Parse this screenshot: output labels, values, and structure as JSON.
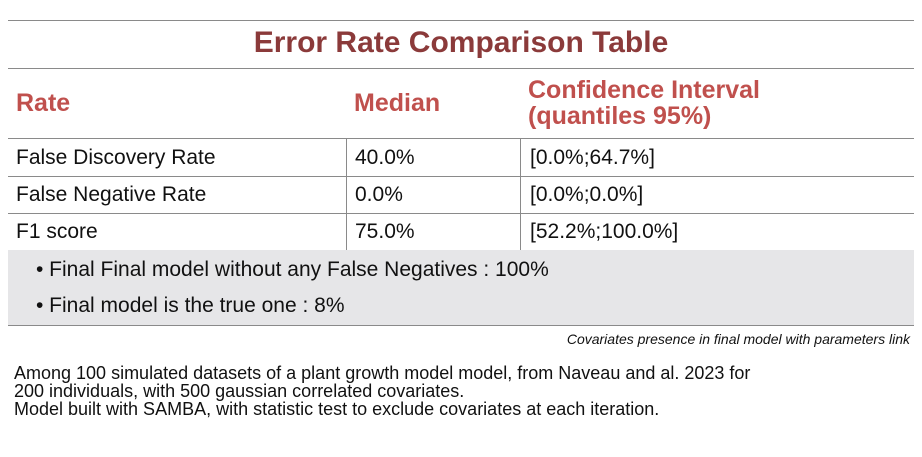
{
  "title": "Error Rate Comparison Table",
  "columns": [
    "Rate",
    "Median",
    "Confidence Interval (quantiles 95%)"
  ],
  "columns_ci_lines": [
    "Confidence Interval",
    "(quantiles 95%)"
  ],
  "rows": [
    {
      "rate": "False Discovery Rate",
      "median": "40.0%",
      "ci": "[0.0%;64.7%]"
    },
    {
      "rate": "False Negative Rate",
      "median": "0.0%",
      "ci": "[0.0%;0.0%]"
    },
    {
      "rate": "F1 score",
      "median": "75.0%",
      "ci": "[52.2%;100.0%]"
    }
  ],
  "notes": [
    "• Final Final model without any False Negatives : 100%",
    "• Final model is the true one : 8%"
  ],
  "caption": "Covariates presence in final model with parameters link",
  "description": [
    "Among 100 simulated datasets of a plant growth model model, from Naveau and al. 2023 for",
    "200 individuals, with 500 gaussian correlated covariates.",
    "Model built with SAMBA, with statistic test to exclude covariates at each iteration."
  ],
  "colors": {
    "title": "#8b3a3a",
    "header": "#c0504d",
    "notes_background": "#e6e6e8"
  }
}
